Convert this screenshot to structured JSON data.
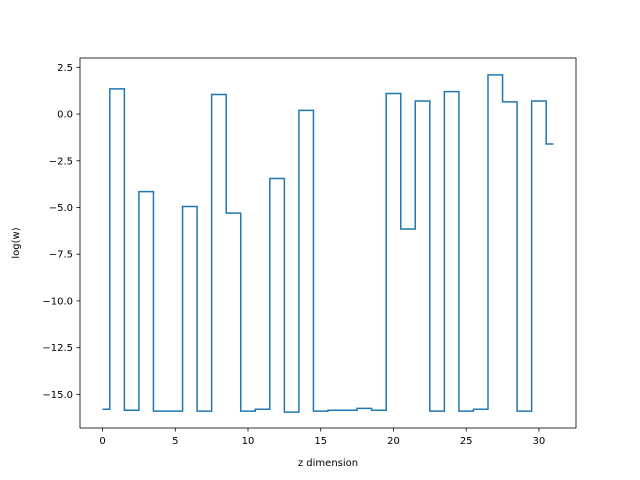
{
  "chart_data": {
    "type": "line",
    "drawstyle": "steps-mid",
    "title": "",
    "xlabel": "z dimension",
    "ylabel": "log(w)",
    "xlim": [
      -1.55,
      32.55
    ],
    "ylim": [
      -16.8,
      3.0
    ],
    "xticks": [
      0,
      5,
      10,
      15,
      20,
      25,
      30
    ],
    "xtick_labels": [
      "0",
      "5",
      "10",
      "15",
      "20",
      "25",
      "30"
    ],
    "yticks": [
      2.5,
      0.0,
      -2.5,
      -5.0,
      -7.5,
      -10.0,
      -12.5,
      -15.0
    ],
    "ytick_labels": [
      "2.5",
      "0.0",
      "−2.5",
      "−5.0",
      "−7.5",
      "−10.0",
      "−12.5",
      "−15.0"
    ],
    "grid": false,
    "legend": null,
    "series": [
      {
        "color": "#1f77b4",
        "x": [
          0,
          1,
          2,
          3,
          4,
          5,
          6,
          7,
          8,
          9,
          10,
          11,
          12,
          13,
          14,
          15,
          16,
          17,
          18,
          19,
          20,
          21,
          22,
          23,
          24,
          25,
          26,
          27,
          28,
          29,
          30,
          31
        ],
        "values": [
          -15.8,
          1.35,
          -15.85,
          -4.15,
          -15.9,
          -15.9,
          -4.95,
          -15.9,
          1.05,
          -5.3,
          -15.9,
          -15.8,
          -3.45,
          -15.95,
          0.2,
          -15.9,
          -15.85,
          -15.85,
          -15.75,
          -15.85,
          1.1,
          -6.15,
          0.7,
          -15.9,
          1.2,
          -15.9,
          -15.8,
          2.1,
          0.65,
          -15.9,
          0.7,
          -1.6
        ]
      }
    ]
  }
}
